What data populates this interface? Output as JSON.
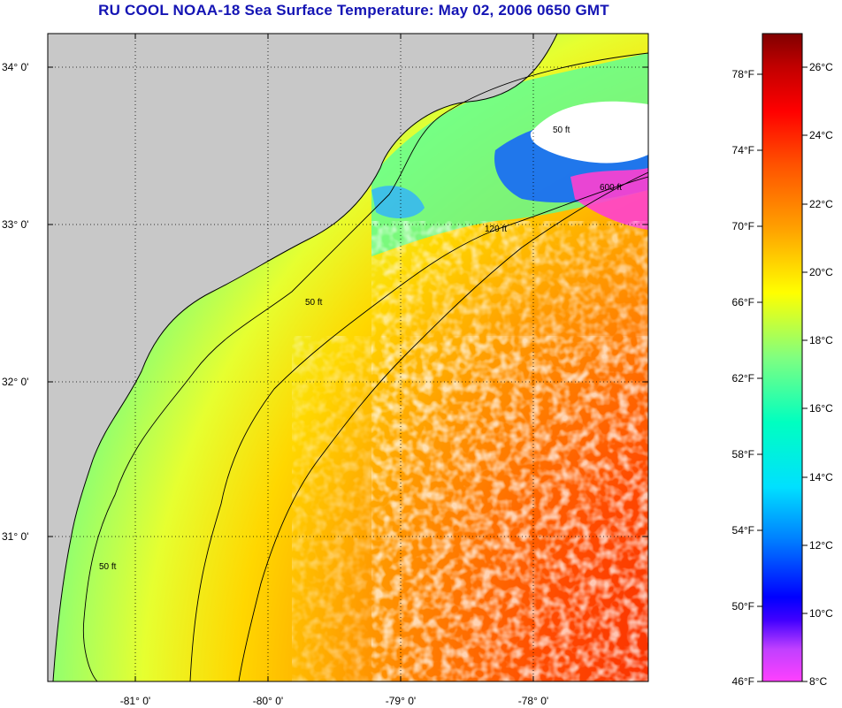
{
  "title": "RU COOL  NOAA-18  Sea Surface Temperature:  May 02, 2006 0650 GMT",
  "lat_labels": [
    "34° 0'",
    "33° 0'",
    "32° 0'",
    "31° 0'"
  ],
  "lon_labels": [
    "-81° 0'",
    "-80° 0'",
    "-79° 0'",
    "-78° 0'"
  ],
  "colorbar": {
    "fahrenheit": [
      "78°F",
      "74°F",
      "70°F",
      "66°F",
      "62°F",
      "58°F",
      "54°F",
      "50°F",
      "46°F"
    ],
    "celsius": [
      "26°C",
      "24°C",
      "22°C",
      "20°C",
      "18°C",
      "16°C",
      "14°C",
      "12°C",
      "10°C",
      "8°C"
    ]
  },
  "contours": {
    "shelf": "50 ft",
    "mid": "120 ft",
    "break": "600 ft"
  },
  "colors": {
    "land": "#c8c8c8",
    "title": "#1414b4",
    "cloud": "#ffffff"
  }
}
